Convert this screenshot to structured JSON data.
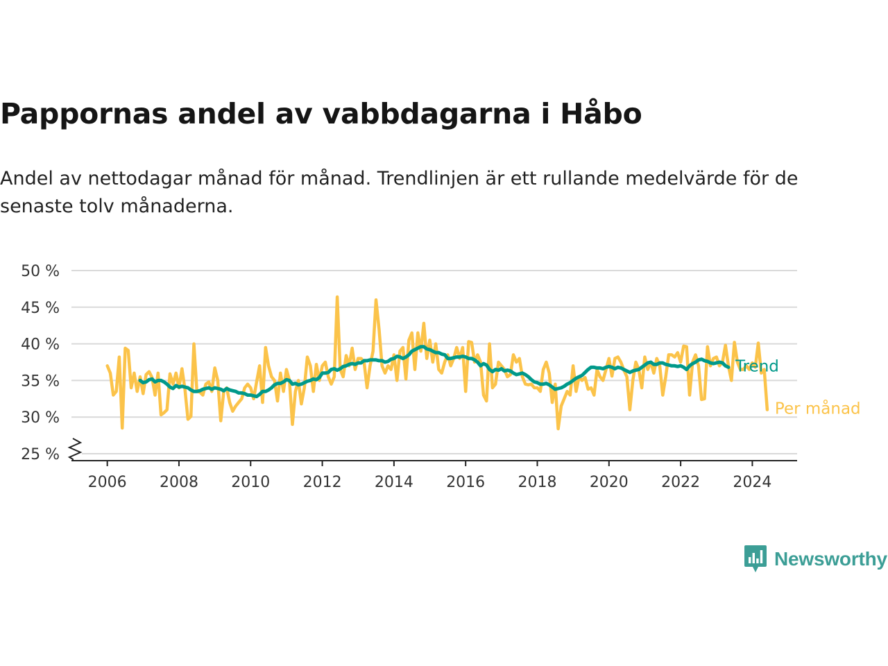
{
  "title": "Pappornas andel av vabbdagarna i Håbo",
  "subtitle": "Andel av nettodagar månad för månad. Trendlinjen är ett rullande medelvärde för de senaste tolv månaderna.",
  "logo": {
    "text": "Newsworthy",
    "icon": "newsworthy-bar-chart-icon"
  },
  "colors": {
    "monthly": "#fbc34a",
    "trend": "#00998a",
    "grid": "#d9d9d9",
    "axis": "#222222",
    "logo": "#3c9e96"
  },
  "chart_data": {
    "type": "line",
    "xlabel": "",
    "ylabel": "",
    "x_ticks": [
      2006,
      2008,
      2010,
      2012,
      2014,
      2016,
      2018,
      2020,
      2022,
      2024
    ],
    "x_tick_labels": [
      "2006",
      "2008",
      "2010",
      "2012",
      "2014",
      "2016",
      "2018",
      "2020",
      "2022",
      "2024"
    ],
    "xlim": [
      2005.0,
      2025.25
    ],
    "y_ticks": [
      25,
      30,
      35,
      40,
      45,
      50
    ],
    "y_tick_labels": [
      "25 %",
      "30 %",
      "35 %",
      "40 %",
      "45 %",
      "50 %"
    ],
    "ylim": [
      24,
      50
    ],
    "axis_break": true,
    "grid": true,
    "legend": "inline-right",
    "series": [
      {
        "name": "Per månad",
        "key": "monthly",
        "x_start": 2006.0,
        "step": 0.08333,
        "values": [
          37.0,
          36.0,
          33.0,
          33.5,
          38.2,
          28.5,
          39.4,
          39.1,
          34.0,
          36.0,
          33.5,
          35.5,
          33.2,
          35.8,
          36.2,
          35.4,
          33.0,
          36.0,
          30.3,
          30.6,
          31.0,
          35.9,
          34.5,
          36.0,
          34.0,
          36.6,
          33.8,
          29.7,
          30.1,
          40.0,
          33.5,
          33.4,
          33.0,
          34.5,
          34.8,
          33.5,
          36.7,
          35.0,
          29.5,
          33.5,
          34.0,
          32.0,
          30.8,
          31.5,
          32.0,
          32.5,
          34.0,
          34.5,
          34.0,
          32.5,
          34.8,
          37.0,
          32.0,
          39.5,
          37.0,
          35.5,
          35.0,
          32.2,
          36.0,
          33.5,
          36.5,
          35.0,
          29.0,
          33.5,
          35.0,
          31.8,
          34.0,
          38.2,
          37.0,
          33.5,
          37.2,
          35.0,
          37.0,
          37.5,
          35.5,
          34.5,
          35.5,
          46.4,
          36.5,
          35.5,
          38.4,
          37.0,
          39.4,
          36.5,
          38.0,
          38.0,
          37.5,
          34.0,
          37.0,
          39.0,
          46.0,
          42.0,
          37.0,
          36.0,
          37.0,
          36.5,
          38.5,
          35.0,
          39.0,
          39.5,
          35.2,
          40.5,
          41.5,
          36.5,
          41.5,
          39.0,
          42.8,
          38.0,
          40.5,
          37.5,
          40.0,
          36.5,
          36.0,
          37.5,
          38.5,
          37.0,
          38.0,
          39.5,
          38.0,
          39.5,
          33.5,
          40.3,
          40.2,
          37.5,
          38.5,
          37.5,
          33.0,
          32.2,
          40.0,
          34.0,
          34.5,
          37.5,
          37.0,
          36.5,
          35.5,
          35.8,
          38.5,
          37.5,
          38.0,
          35.5,
          34.5,
          34.4,
          34.5,
          34.0,
          34.0,
          33.5,
          36.5,
          37.5,
          36.0,
          32.0,
          34.5,
          28.4,
          31.5,
          32.5,
          33.5,
          33.0,
          37.0,
          33.5,
          35.5,
          35.0,
          35.4,
          33.8,
          34.0,
          33.0,
          36.5,
          35.5,
          35.0,
          36.5,
          38.0,
          35.6,
          38.0,
          38.2,
          37.5,
          36.4,
          35.5,
          31.0,
          35.0,
          37.5,
          36.5,
          34.0,
          38.2,
          36.5,
          37.5,
          36.0,
          38.0,
          37.0,
          33.0,
          35.5,
          38.5,
          38.5,
          38.2,
          38.8,
          37.5,
          39.7,
          39.6,
          33.0,
          37.5,
          38.5,
          37.0,
          32.4,
          32.5,
          39.6,
          37.0,
          38.0,
          38.2,
          37.0,
          37.5,
          39.8,
          37.0,
          35.0,
          40.2,
          37.5,
          36.5,
          36.5,
          37.0,
          36.5,
          37.4,
          36.8,
          40.1,
          36.0,
          36.5,
          31.0
        ]
      },
      {
        "name": "Trend",
        "key": "trend",
        "x_start": 2006.9167,
        "step": 0.08333,
        "values": [
          35.0,
          34.7,
          34.8,
          35.1,
          35.2,
          34.8,
          35.0,
          35.0,
          34.8,
          34.5,
          34.1,
          33.9,
          34.3,
          34.1,
          34.2,
          34.1,
          34.0,
          33.7,
          33.5,
          33.5,
          33.6,
          33.8,
          33.9,
          34.0,
          33.8,
          34.0,
          33.9,
          33.8,
          33.6,
          33.9,
          33.7,
          33.6,
          33.5,
          33.3,
          33.3,
          33.2,
          33.0,
          33.0,
          32.9,
          32.8,
          33.1,
          33.5,
          33.5,
          33.7,
          34.0,
          34.4,
          34.6,
          34.6,
          34.8,
          35.1,
          35.0,
          34.5,
          34.6,
          34.4,
          34.5,
          34.7,
          34.9,
          35.0,
          35.2,
          35.1,
          35.4,
          36.0,
          36.0,
          36.1,
          36.5,
          36.6,
          36.4,
          36.6,
          36.9,
          37.0,
          37.2,
          37.3,
          37.2,
          37.4,
          37.4,
          37.7,
          37.7,
          37.8,
          37.8,
          37.8,
          37.7,
          37.7,
          37.5,
          37.6,
          37.9,
          38.0,
          38.3,
          38.2,
          38.0,
          38.2,
          38.5,
          39.0,
          39.2,
          39.4,
          39.6,
          39.6,
          39.3,
          39.2,
          39.0,
          38.8,
          38.8,
          38.6,
          38.5,
          38.0,
          38.0,
          38.1,
          38.2,
          38.2,
          38.3,
          38.2,
          38.0,
          38.0,
          37.8,
          37.5,
          37.0,
          37.3,
          37.1,
          36.5,
          36.2,
          36.5,
          36.4,
          36.6,
          36.3,
          36.4,
          36.3,
          36.0,
          35.8,
          35.9,
          36.0,
          35.8,
          35.5,
          35.1,
          34.8,
          34.7,
          34.5,
          34.5,
          34.6,
          34.4,
          34.1,
          33.8,
          33.9,
          34.0,
          34.2,
          34.5,
          34.7,
          35.0,
          35.3,
          35.5,
          35.7,
          36.1,
          36.5,
          36.8,
          36.8,
          36.7,
          36.7,
          36.6,
          36.8,
          36.9,
          36.8,
          36.6,
          36.8,
          36.7,
          36.5,
          36.3,
          36.1,
          36.3,
          36.4,
          36.5,
          36.8,
          37.1,
          37.4,
          37.5,
          37.2,
          37.2,
          37.4,
          37.4,
          37.2,
          37.1,
          37.0,
          37.0,
          36.9,
          37.0,
          36.8,
          36.5,
          37.0,
          37.3,
          37.5,
          37.8,
          37.9,
          37.7,
          37.6,
          37.4,
          37.3,
          37.4,
          37.5,
          37.4,
          37.0,
          36.8
        ]
      }
    ],
    "series_labels": [
      "Trend",
      "Per månad"
    ]
  }
}
